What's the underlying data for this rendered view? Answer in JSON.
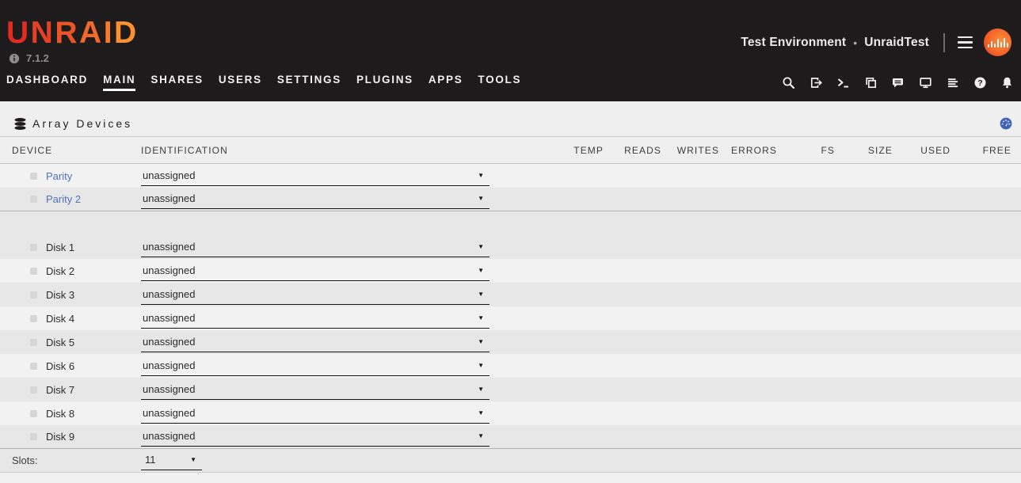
{
  "header": {
    "logo_text": "UNRAID",
    "version": "7.1.2",
    "server_description": "Test Environment",
    "separator_dot": "•",
    "server_name": "UnraidTest",
    "nav_items": [
      {
        "label": "DASHBOARD",
        "active": false
      },
      {
        "label": "MAIN",
        "active": true
      },
      {
        "label": "SHARES",
        "active": false
      },
      {
        "label": "USERS",
        "active": false
      },
      {
        "label": "SETTINGS",
        "active": false
      },
      {
        "label": "PLUGINS",
        "active": false
      },
      {
        "label": "APPS",
        "active": false
      },
      {
        "label": "TOOLS",
        "active": false
      }
    ],
    "toolbar_icons": [
      "search",
      "logout",
      "terminal",
      "copy",
      "feedback",
      "display",
      "log",
      "help",
      "notifications"
    ]
  },
  "array_section": {
    "title": "Array Devices",
    "title_icon": "disk-stack-icon",
    "corner_icon": "gauge-icon"
  },
  "table": {
    "columns": [
      "DEVICE",
      "IDENTIFICATION",
      "TEMP",
      "READS",
      "WRITES",
      "ERRORS",
      "FS",
      "SIZE",
      "USED",
      "FREE"
    ],
    "rows": [
      {
        "device": "Parity",
        "link": true,
        "identification": "unassigned",
        "shade": "light",
        "divider_below": false,
        "spacer": false
      },
      {
        "device": "Parity 2",
        "link": true,
        "identification": "unassigned",
        "shade": "dark",
        "divider_below": true,
        "spacer": false
      },
      {
        "device": "",
        "link": false,
        "identification": "",
        "shade": "dark",
        "divider_below": false,
        "spacer": true
      },
      {
        "device": "Disk 1",
        "link": false,
        "identification": "unassigned",
        "shade": "dark",
        "divider_below": false,
        "spacer": false
      },
      {
        "device": "Disk 2",
        "link": false,
        "identification": "unassigned",
        "shade": "light",
        "divider_below": false,
        "spacer": false
      },
      {
        "device": "Disk 3",
        "link": false,
        "identification": "unassigned",
        "shade": "dark",
        "divider_below": false,
        "spacer": false
      },
      {
        "device": "Disk 4",
        "link": false,
        "identification": "unassigned",
        "shade": "light",
        "divider_below": false,
        "spacer": false
      },
      {
        "device": "Disk 5",
        "link": false,
        "identification": "unassigned",
        "shade": "dark",
        "divider_below": false,
        "spacer": false
      },
      {
        "device": "Disk 6",
        "link": false,
        "identification": "unassigned",
        "shade": "light",
        "divider_below": false,
        "spacer": false
      },
      {
        "device": "Disk 7",
        "link": false,
        "identification": "unassigned",
        "shade": "dark",
        "divider_below": false,
        "spacer": false
      },
      {
        "device": "Disk 8",
        "link": false,
        "identification": "unassigned",
        "shade": "light",
        "divider_below": false,
        "spacer": false
      },
      {
        "device": "Disk 9",
        "link": false,
        "identification": "unassigned",
        "shade": "dark",
        "divider_below": true,
        "spacer": false
      }
    ],
    "slots_label": "Slots:",
    "slots_value": "11",
    "dropdown_caret": "▼"
  },
  "colors": {
    "top_bar_bg": "#1d1b1b",
    "logo_gradient_start": "#e02c21",
    "logo_gradient_end": "#ff9031",
    "link_blue": "#4f72bd",
    "gauge_blue": "#3f62b5",
    "row_light": "#f2f2f2",
    "row_dark": "#e7e7e7"
  }
}
